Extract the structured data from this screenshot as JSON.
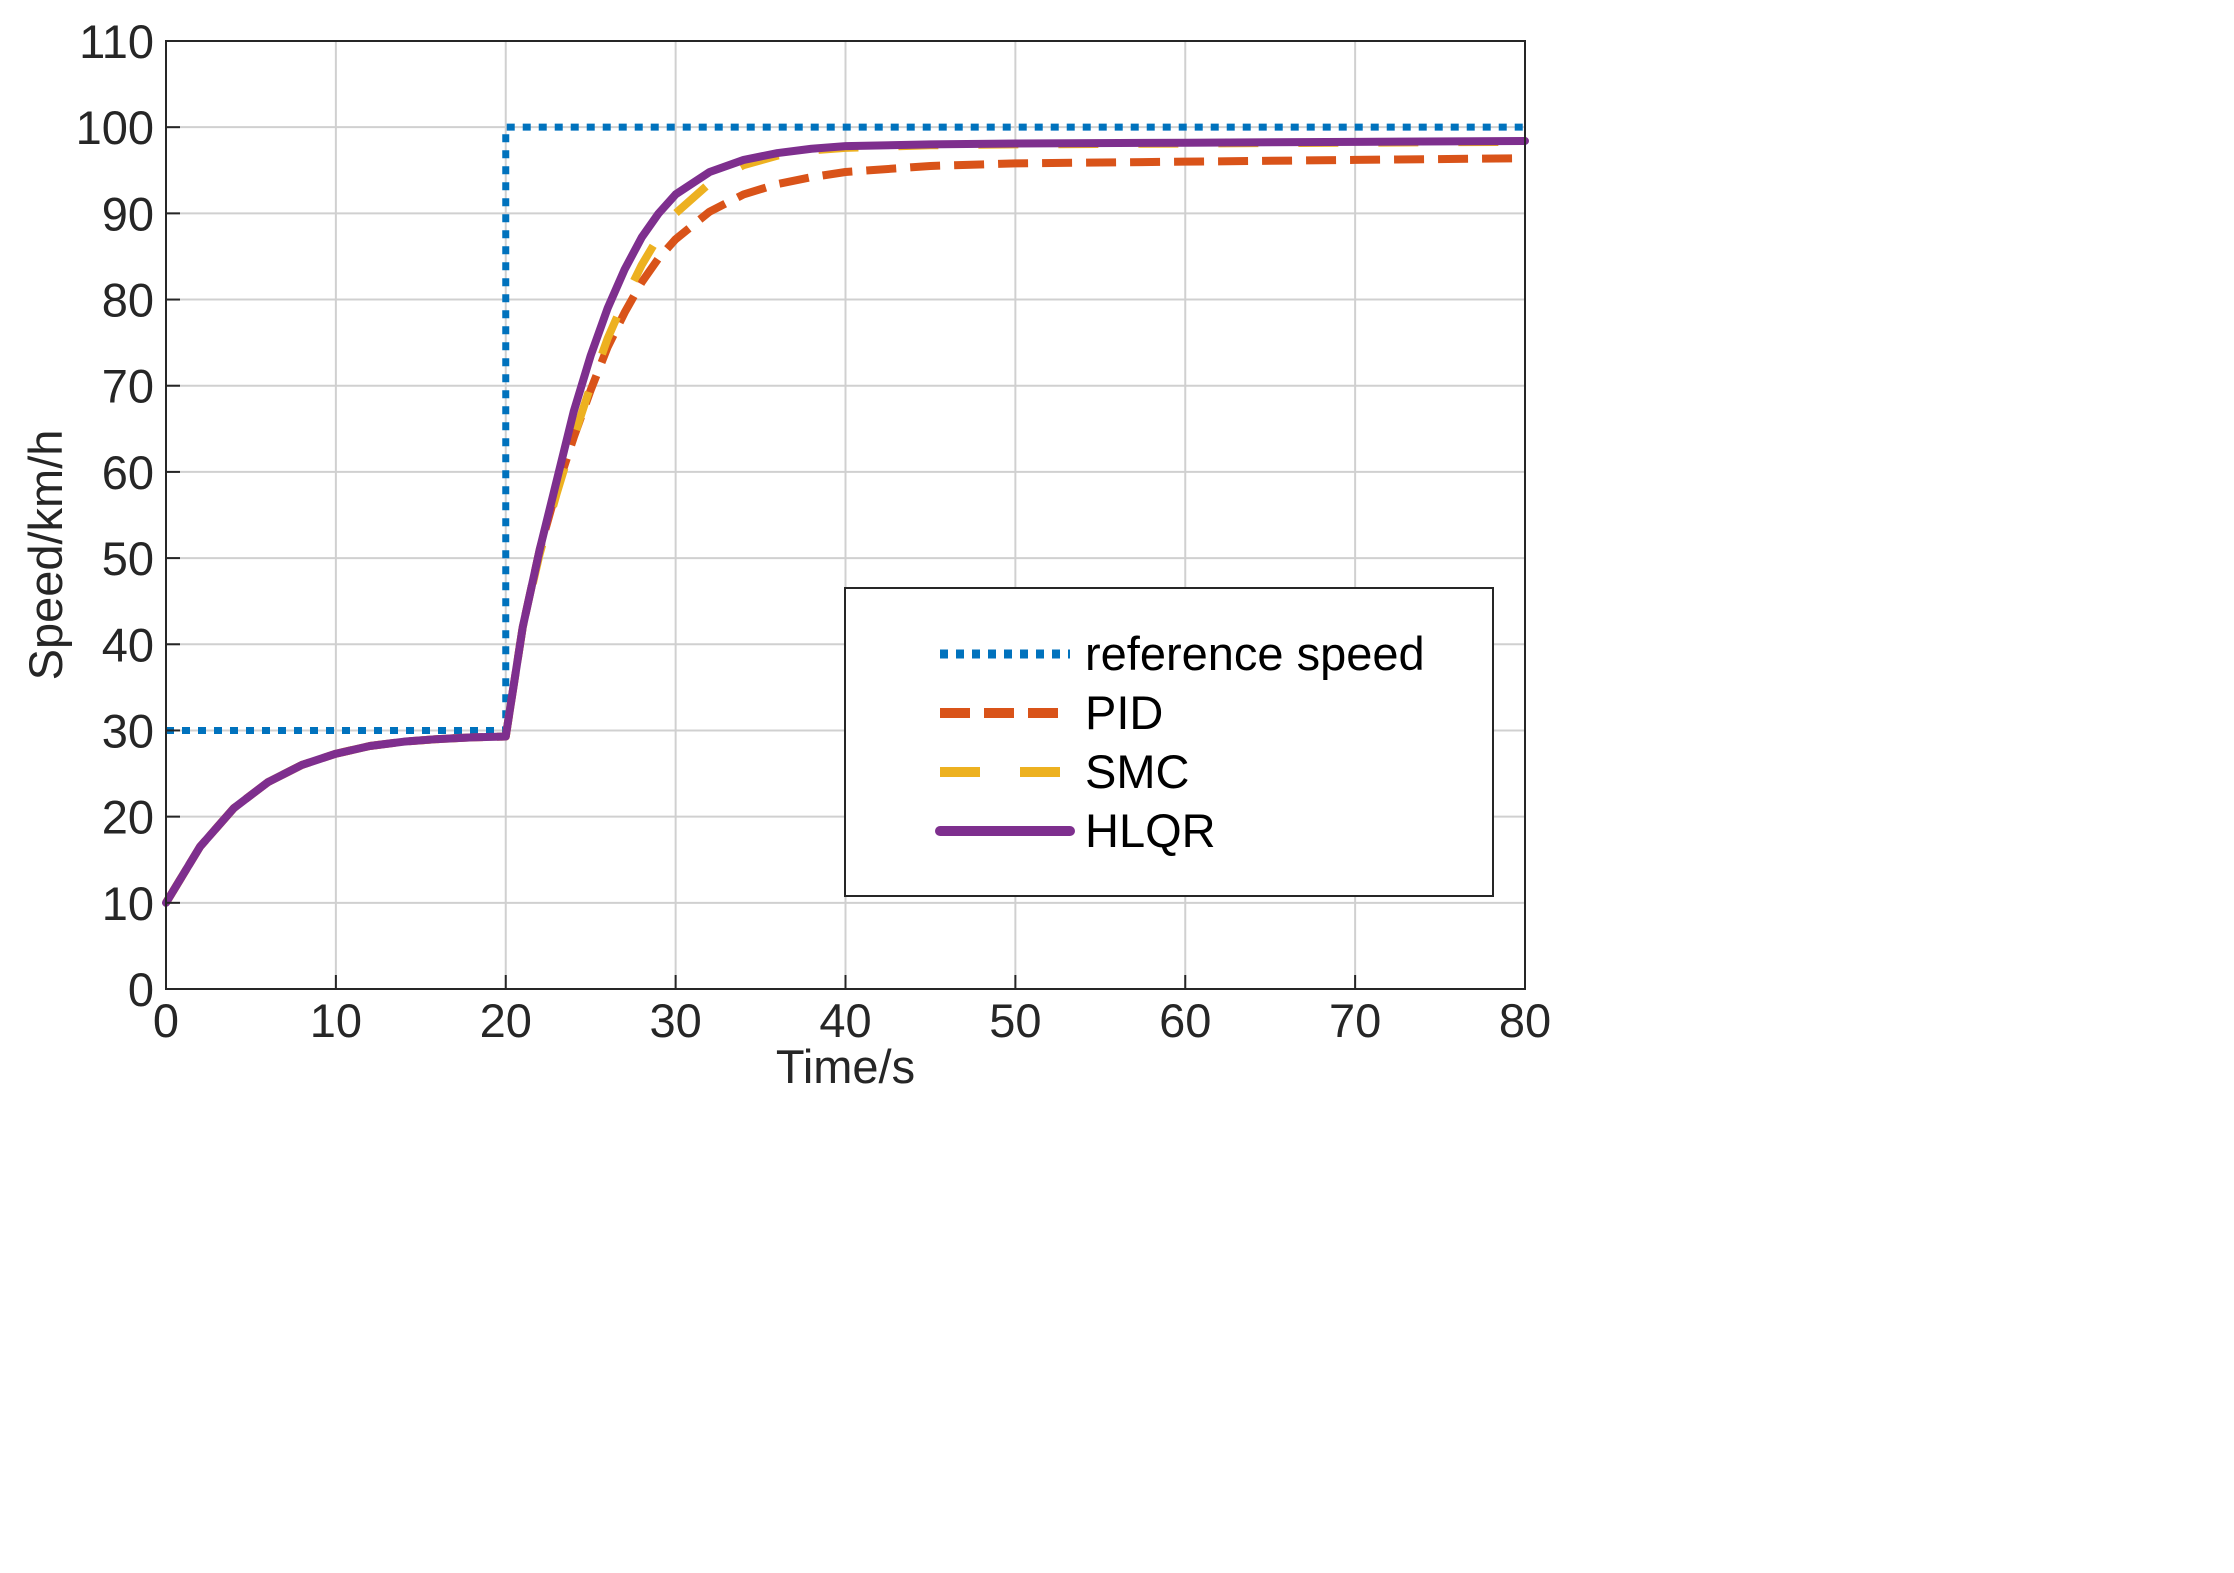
{
  "chart_data": {
    "type": "line",
    "title": "",
    "xlabel": "Time/s",
    "ylabel": "Speed/km/h",
    "xlim": [
      0,
      80
    ],
    "ylim": [
      0,
      110
    ],
    "xticks": [
      "0",
      "10",
      "20",
      "30",
      "40",
      "50",
      "60",
      "70",
      "80"
    ],
    "yticks": [
      "0",
      "10",
      "20",
      "30",
      "40",
      "50",
      "60",
      "70",
      "80",
      "90",
      "100",
      "110"
    ],
    "grid": true,
    "legend_position": "bottom-right",
    "series": [
      {
        "name": "reference speed",
        "color": "#0072BD",
        "style": "dotted",
        "points": [
          [
            0,
            30
          ],
          [
            20,
            30
          ],
          [
            20,
            100
          ],
          [
            80,
            100
          ]
        ]
      },
      {
        "name": "PID",
        "color": "#D95319",
        "style": "dashed",
        "points": [
          [
            0,
            10
          ],
          [
            2,
            16.5
          ],
          [
            4,
            21
          ],
          [
            6,
            24
          ],
          [
            8,
            26
          ],
          [
            10,
            27.3
          ],
          [
            12,
            28.2
          ],
          [
            14,
            28.7
          ],
          [
            16,
            29
          ],
          [
            18,
            29.2
          ],
          [
            20,
            29.3
          ],
          [
            21,
            42
          ],
          [
            22,
            51
          ],
          [
            23,
            58
          ],
          [
            24,
            64
          ],
          [
            25,
            69.5
          ],
          [
            26,
            74.5
          ],
          [
            27,
            78.5
          ],
          [
            28,
            82
          ],
          [
            29,
            84.8
          ],
          [
            30,
            87
          ],
          [
            32,
            90.2
          ],
          [
            34,
            92.2
          ],
          [
            36,
            93.4
          ],
          [
            38,
            94.2
          ],
          [
            40,
            94.8
          ],
          [
            45,
            95.5
          ],
          [
            50,
            95.8
          ],
          [
            60,
            96
          ],
          [
            70,
            96.2
          ],
          [
            80,
            96.4
          ]
        ]
      },
      {
        "name": "SMC",
        "color": "#EDB120",
        "style": "long-dash",
        "points": [
          [
            0,
            10
          ],
          [
            2,
            16.5
          ],
          [
            4,
            21
          ],
          [
            6,
            24
          ],
          [
            8,
            26
          ],
          [
            10,
            27.3
          ],
          [
            12,
            28.2
          ],
          [
            14,
            28.7
          ],
          [
            16,
            29
          ],
          [
            18,
            29.2
          ],
          [
            20,
            29.3
          ],
          [
            21,
            42
          ],
          [
            22,
            50.5
          ],
          [
            23,
            57.5
          ],
          [
            24,
            64
          ],
          [
            25,
            70
          ],
          [
            26,
            75.5
          ],
          [
            27,
            80
          ],
          [
            28,
            84
          ],
          [
            29,
            87.3
          ],
          [
            30,
            90
          ],
          [
            32,
            93.5
          ],
          [
            34,
            95.6
          ],
          [
            36,
            96.7
          ],
          [
            38,
            97.3
          ],
          [
            40,
            97.6
          ],
          [
            45,
            97.9
          ],
          [
            50,
            98
          ],
          [
            60,
            98.1
          ],
          [
            70,
            98.2
          ],
          [
            80,
            98.3
          ]
        ]
      },
      {
        "name": "HLQR",
        "color": "#7E2F8E",
        "style": "solid",
        "points": [
          [
            0,
            10
          ],
          [
            2,
            16.5
          ],
          [
            4,
            21
          ],
          [
            6,
            24
          ],
          [
            8,
            26
          ],
          [
            10,
            27.3
          ],
          [
            12,
            28.2
          ],
          [
            14,
            28.7
          ],
          [
            16,
            29
          ],
          [
            18,
            29.2
          ],
          [
            20,
            29.3
          ],
          [
            21,
            42
          ],
          [
            22,
            51
          ],
          [
            23,
            59
          ],
          [
            24,
            67
          ],
          [
            25,
            73.5
          ],
          [
            26,
            79
          ],
          [
            27,
            83.5
          ],
          [
            28,
            87.2
          ],
          [
            29,
            90
          ],
          [
            30,
            92.2
          ],
          [
            32,
            94.8
          ],
          [
            34,
            96.2
          ],
          [
            36,
            97
          ],
          [
            38,
            97.5
          ],
          [
            40,
            97.8
          ],
          [
            45,
            98
          ],
          [
            50,
            98.1
          ],
          [
            60,
            98.2
          ],
          [
            70,
            98.3
          ],
          [
            80,
            98.4
          ]
        ]
      }
    ]
  }
}
